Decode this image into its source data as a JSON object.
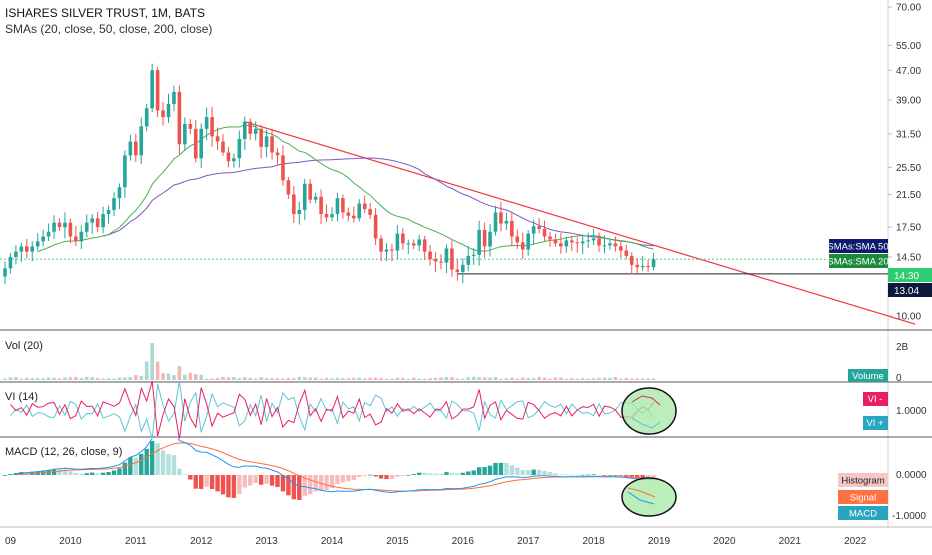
{
  "header": {
    "title": "ISHARES SILVER TRUST, 1M, BATS",
    "indicators": "SMAs (20, close, 50, close, 200, close)"
  },
  "colors": {
    "up": "#26a69a",
    "down": "#ef5350",
    "sma20": "#4caf50",
    "sma50": "#7e57c2",
    "trendline": "#f23645",
    "vi_plus": "#e91e63",
    "vi_minus": "#5ec4d6",
    "macd_line": "#2196f3",
    "signal_line": "#ff6d3a",
    "price_line": "#2ecc71",
    "highlight_fill": "#a5e8a5"
  },
  "price_axis": {
    "scale": "log",
    "ticks": [
      70.0,
      55.0,
      47.0,
      39.0,
      31.5,
      25.5,
      21.5,
      17.5,
      14.5,
      10.0
    ],
    "tick_labels": [
      "70.00",
      "55.00",
      "47.00",
      "39.00",
      "31.50",
      "25.50",
      "21.50",
      "17.50",
      "14.50",
      "10.00"
    ]
  },
  "time_axis": {
    "labels": [
      "09",
      "2010",
      "2011",
      "2012",
      "2013",
      "2014",
      "2015",
      "2016",
      "2017",
      "2018",
      "2019",
      "2020",
      "2021",
      "2022"
    ]
  },
  "tags": {
    "sma50": {
      "label": "SMAs:SMA 50",
      "value": 15.35
    },
    "sma20": {
      "label": "SMAs:SMA 20",
      "value": 14.55
    },
    "last": {
      "label": "14.30",
      "value": 14.3
    },
    "support": {
      "label": "13.04",
      "value": 13.04
    }
  },
  "volume_pane": {
    "title": "Vol (20)",
    "tick_labels": [
      "2B",
      "0"
    ],
    "tag": "Volume"
  },
  "vi_pane": {
    "title": "VI (14)",
    "tick_labels": [
      "1.0000"
    ],
    "tag_plus": "VI -",
    "tag_minus": "VI +"
  },
  "macd_pane": {
    "title": "MACD (12, 26, close, 9)",
    "tick_labels": [
      "0.0000",
      "-1.0000"
    ],
    "tags": [
      "Histogram",
      "Signal",
      "MACD"
    ]
  },
  "chart_data": [
    {
      "type": "candlestick",
      "pane": "price",
      "scale": "log",
      "x_unit": "month",
      "x_start": "2009-01",
      "x_end": "2022-12",
      "ylim": [
        9.0,
        72.0
      ],
      "monthly_closes_approx": [
        {
          "year": 2009,
          "close": [
            13.5,
            14.5,
            15.0,
            15.5,
            15.0,
            15.5,
            16.0,
            16.5,
            17.0,
            18.0,
            17.5,
            18.0
          ]
        },
        {
          "year": 2010,
          "close": [
            16.5,
            16.0,
            17.0,
            18.0,
            18.5,
            17.5,
            19.0,
            19.5,
            21.0,
            22.5,
            27.5,
            30.0
          ]
        },
        {
          "year": 2011,
          "close": [
            27.5,
            33.0,
            37.0,
            47.0,
            36.5,
            35.0,
            38.0,
            41.0,
            29.5,
            33.5,
            32.5,
            27.0
          ]
        },
        {
          "year": 2012,
          "close": [
            32.5,
            35.0,
            31.0,
            30.0,
            28.0,
            26.5,
            27.0,
            30.5,
            34.0,
            31.5,
            32.5,
            29.0
          ]
        },
        {
          "year": 2013,
          "close": [
            31.0,
            28.0,
            27.5,
            23.5,
            21.5,
            19.0,
            19.5,
            23.0,
            20.8,
            21.2,
            19.0,
            18.6
          ]
        },
        {
          "year": 2014,
          "close": [
            19.0,
            21.0,
            19.2,
            18.8,
            18.5,
            20.3,
            19.6,
            18.9,
            16.3,
            15.0,
            15.2,
            15.1
          ]
        },
        {
          "year": 2015,
          "close": [
            16.8,
            15.8,
            15.8,
            15.6,
            16.2,
            15.0,
            14.3,
            14.1,
            14.0,
            15.3,
            13.4,
            13.2
          ]
        },
        {
          "year": 2016,
          "close": [
            13.8,
            14.6,
            14.7,
            17.2,
            15.5,
            17.0,
            19.2,
            17.9,
            18.2,
            16.5,
            15.9,
            15.2
          ]
        },
        {
          "year": 2017,
          "close": [
            16.8,
            17.6,
            17.3,
            16.5,
            16.2,
            15.8,
            15.5,
            16.1,
            15.9,
            15.8,
            16.0,
            16.1
          ]
        },
        {
          "year": 2018,
          "close": [
            16.3,
            15.6,
            15.6,
            15.8,
            15.5,
            15.1,
            14.6,
            13.8,
            13.6,
            13.7,
            13.6,
            14.3
          ]
        }
      ],
      "sma20_end": 14.55,
      "sma50_end": 15.35,
      "horizontal_lines": [
        14.3,
        13.04
      ],
      "trendline": {
        "from": {
          "date": "2012-09",
          "price": 34.0
        },
        "to": {
          "date": "2022-12",
          "price": 9.5
        }
      }
    },
    {
      "type": "bar",
      "pane": "volume",
      "series": [
        {
          "name": "Volume",
          "peak": {
            "date": "2011-04",
            "value": 2.4
          },
          "unit": "B"
        }
      ]
    },
    {
      "type": "line",
      "pane": "vi",
      "series": [
        {
          "name": "VI +"
        },
        {
          "name": "VI -"
        }
      ],
      "reference": 1.0
    },
    {
      "type": "bar+line",
      "pane": "macd",
      "series": [
        {
          "name": "Histogram"
        },
        {
          "name": "Signal"
        },
        {
          "name": "MACD"
        }
      ],
      "yticks": [
        0.0,
        -1.0
      ]
    }
  ]
}
